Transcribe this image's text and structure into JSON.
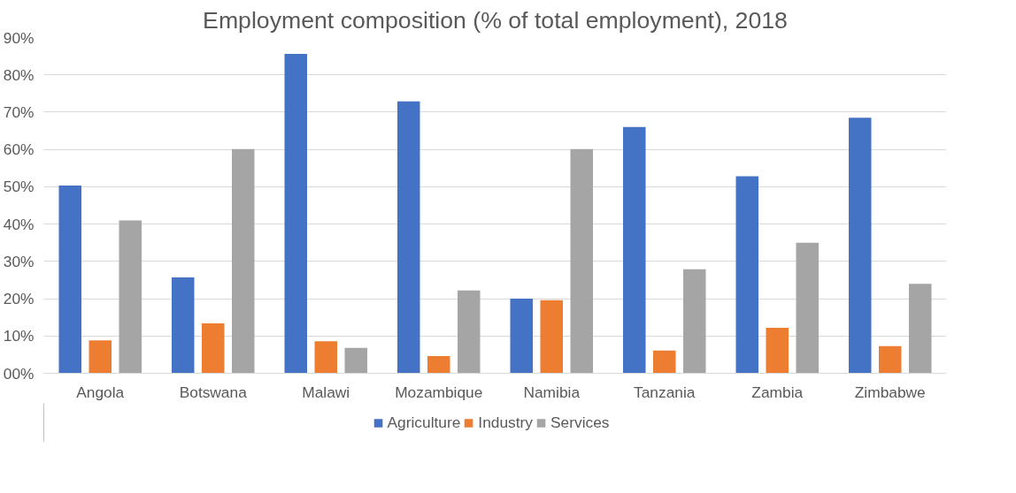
{
  "chart_data": {
    "type": "bar",
    "title": "Employment composition (% of total employment), 2018",
    "categories": [
      "Angola",
      "Botswana",
      "Malawi",
      "Mozambique",
      "Namibia",
      "Tanzania",
      "Zambia",
      "Zimbabwe"
    ],
    "series": [
      {
        "name": "Agriculture",
        "color": "#4472c4",
        "values": [
          50.3,
          25.7,
          85.6,
          72.9,
          20.0,
          66.0,
          52.8,
          68.5
        ]
      },
      {
        "name": "Industry",
        "color": "#ed7d31",
        "values": [
          8.8,
          13.4,
          8.6,
          4.6,
          19.6,
          6.1,
          12.2,
          7.3
        ]
      },
      {
        "name": "Services",
        "color": "#a5a5a5",
        "values": [
          41.0,
          60.1,
          6.8,
          22.2,
          60.1,
          27.9,
          35.0,
          24.0
        ]
      }
    ],
    "ylim": [
      0,
      90
    ],
    "yticks": [
      {
        "value": 0,
        "label": "00%"
      },
      {
        "value": 10,
        "label": "10%"
      },
      {
        "value": 20,
        "label": "20%"
      },
      {
        "value": 30,
        "label": "30%"
      },
      {
        "value": 40,
        "label": "40%"
      },
      {
        "value": 50,
        "label": "50%"
      },
      {
        "value": 60,
        "label": "60%"
      },
      {
        "value": 70,
        "label": "70%"
      },
      {
        "value": 80,
        "label": "80%"
      },
      {
        "value": 90,
        "label": "90%"
      }
    ],
    "grid": "y",
    "legend": "bottom"
  }
}
